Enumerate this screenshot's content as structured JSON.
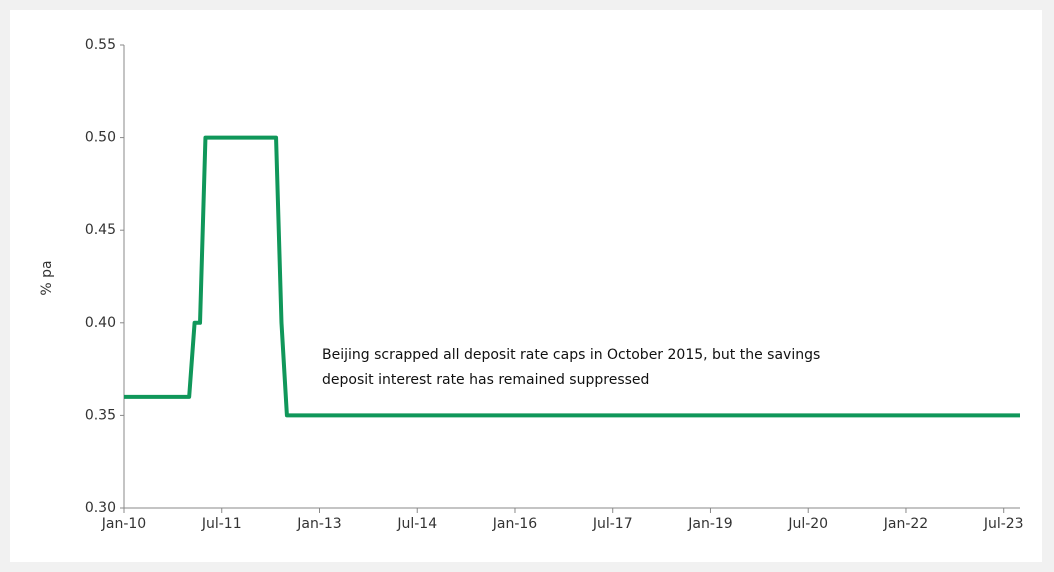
{
  "chart_data": {
    "type": "line",
    "y_label": "% pa",
    "annotation": [
      "Beijing scrapped all deposit rate caps in October 2015, but the savings",
      "deposit interest rate has remained suppressed"
    ],
    "x": [
      "2010-01",
      "2011-01",
      "2011-02",
      "2011-03",
      "2011-04",
      "2012-05",
      "2012-06",
      "2012-07",
      "2023-10"
    ],
    "series": [
      {
        "color": "#10975a",
        "values": [
          0.36,
          0.36,
          0.4,
          0.4,
          0.5,
          0.5,
          0.4,
          0.35,
          0.35
        ]
      }
    ],
    "xlim": [
      "2010-01",
      "2023-10"
    ],
    "xticks": [
      {
        "value": "2010-01",
        "label": "Jan-10"
      },
      {
        "value": "2011-07",
        "label": "Jul-11"
      },
      {
        "value": "2013-01",
        "label": "Jan-13"
      },
      {
        "value": "2014-07",
        "label": "Jul-14"
      },
      {
        "value": "2016-01",
        "label": "Jan-16"
      },
      {
        "value": "2017-07",
        "label": "Jul-17"
      },
      {
        "value": "2019-01",
        "label": "Jan-19"
      },
      {
        "value": "2020-07",
        "label": "Jul-20"
      },
      {
        "value": "2022-01",
        "label": "Jan-22"
      },
      {
        "value": "2023-07",
        "label": "Jul-23"
      }
    ],
    "ylim": [
      0.3,
      0.55
    ],
    "yticks": [
      {
        "value": 0.3,
        "label": "0.30"
      },
      0.35,
      {
        "value": 0.4,
        "label": "0.40"
      },
      0.45,
      {
        "value": 0.5,
        "label": "0.50"
      },
      0.55
    ],
    "grid": false
  }
}
